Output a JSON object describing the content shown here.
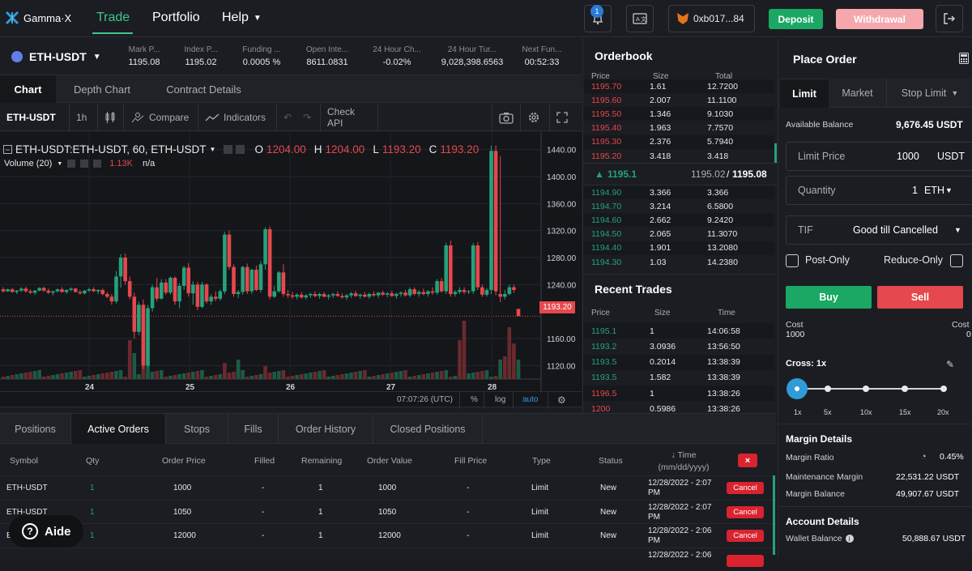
{
  "topnav": {
    "logo_text": "Gamma·X",
    "nav": [
      "Trade",
      "Portfolio",
      "Help"
    ],
    "notif_count": "1",
    "wallet_address": "0xb017...84",
    "deposit_label": "Deposit",
    "withdraw_label": "Withdrawal"
  },
  "ticker": {
    "pair": "ETH-USDT",
    "stats": [
      {
        "label": "Mark P...",
        "value": "1195.08"
      },
      {
        "label": "Index P...",
        "value": "1195.02"
      },
      {
        "label": "Funding ...",
        "value": "0.0005 %"
      },
      {
        "label": "Open Inte...",
        "value": "8611.0831"
      },
      {
        "label": "24 Hour Ch...",
        "value": "-0.02%"
      },
      {
        "label": "24 Hour Tur...",
        "value": "9,028,398.6563"
      },
      {
        "label": "Next Fun...",
        "value": "00:52:33"
      }
    ]
  },
  "chart_tabs": [
    "Chart",
    "Depth Chart",
    "Contract Details"
  ],
  "chart_toolbar": {
    "symbol": "ETH-USDT",
    "interval": "1h",
    "compare": "Compare",
    "indicators": "Indicators",
    "check_api": "Check API"
  },
  "chart_header": {
    "title": "ETH-USDT:ETH-USDT, 60, ETH-USDT",
    "o_label": "O",
    "o_val": "1204.00",
    "h_label": "H",
    "h_val": "1204.00",
    "l_label": "L",
    "l_val": "1193.20",
    "c_label": "C",
    "c_val": "1193.20",
    "volume_label": "Volume (20)",
    "volume_val": "1.13K",
    "volume_na": "n/a"
  },
  "chart_footer": {
    "time": "07:07:26 (UTC)",
    "pct": "%",
    "log": "log",
    "auto": "auto"
  },
  "chart_data": {
    "type": "candlestick",
    "price_ticks": [
      "1440.00",
      "1400.00",
      "1360.00",
      "1320.00",
      "1280.00",
      "1240.00",
      "1160.00",
      "1120.00"
    ],
    "last_price": "1193.20",
    "x_ticks": [
      "24",
      "25",
      "26",
      "27",
      "28"
    ],
    "ylim": [
      1100,
      1460
    ],
    "candles": [
      {
        "o": 1233,
        "h": 1236,
        "l": 1228,
        "c": 1230
      },
      {
        "o": 1230,
        "h": 1234,
        "l": 1229,
        "c": 1233
      },
      {
        "o": 1233,
        "h": 1235,
        "l": 1228,
        "c": 1229
      },
      {
        "o": 1229,
        "h": 1232,
        "l": 1226,
        "c": 1231
      },
      {
        "o": 1231,
        "h": 1236,
        "l": 1229,
        "c": 1234
      },
      {
        "o": 1234,
        "h": 1237,
        "l": 1228,
        "c": 1230
      },
      {
        "o": 1230,
        "h": 1233,
        "l": 1226,
        "c": 1228
      },
      {
        "o": 1228,
        "h": 1232,
        "l": 1225,
        "c": 1231
      },
      {
        "o": 1231,
        "h": 1236,
        "l": 1230,
        "c": 1235
      },
      {
        "o": 1235,
        "h": 1237,
        "l": 1229,
        "c": 1231
      },
      {
        "o": 1231,
        "h": 1234,
        "l": 1226,
        "c": 1228
      },
      {
        "o": 1228,
        "h": 1231,
        "l": 1224,
        "c": 1230
      },
      {
        "o": 1230,
        "h": 1234,
        "l": 1228,
        "c": 1233
      },
      {
        "o": 1233,
        "h": 1236,
        "l": 1228,
        "c": 1229
      },
      {
        "o": 1229,
        "h": 1233,
        "l": 1226,
        "c": 1232
      },
      {
        "o": 1232,
        "h": 1236,
        "l": 1230,
        "c": 1234
      },
      {
        "o": 1234,
        "h": 1235,
        "l": 1228,
        "c": 1229
      },
      {
        "o": 1229,
        "h": 1232,
        "l": 1225,
        "c": 1227
      },
      {
        "o": 1227,
        "h": 1232,
        "l": 1225,
        "c": 1231
      },
      {
        "o": 1231,
        "h": 1235,
        "l": 1229,
        "c": 1233
      },
      {
        "o": 1233,
        "h": 1236,
        "l": 1229,
        "c": 1230
      },
      {
        "o": 1230,
        "h": 1233,
        "l": 1226,
        "c": 1232
      },
      {
        "o": 1232,
        "h": 1234,
        "l": 1224,
        "c": 1226
      },
      {
        "o": 1226,
        "h": 1229,
        "l": 1220,
        "c": 1222
      },
      {
        "o": 1222,
        "h": 1226,
        "l": 1210,
        "c": 1215
      },
      {
        "o": 1215,
        "h": 1260,
        "l": 1212,
        "c": 1252
      },
      {
        "o": 1252,
        "h": 1285,
        "l": 1235,
        "c": 1280
      },
      {
        "o": 1280,
        "h": 1286,
        "l": 1240,
        "c": 1245
      },
      {
        "o": 1245,
        "h": 1252,
        "l": 1218,
        "c": 1222
      },
      {
        "o": 1222,
        "h": 1228,
        "l": 1160,
        "c": 1170
      },
      {
        "o": 1170,
        "h": 1215,
        "l": 1165,
        "c": 1210
      },
      {
        "o": 1210,
        "h": 1218,
        "l": 1115,
        "c": 1120
      },
      {
        "o": 1120,
        "h": 1210,
        "l": 1118,
        "c": 1205
      },
      {
        "o": 1205,
        "h": 1240,
        "l": 1200,
        "c": 1236
      },
      {
        "o": 1236,
        "h": 1250,
        "l": 1215,
        "c": 1219
      },
      {
        "o": 1219,
        "h": 1248,
        "l": 1218,
        "c": 1243
      },
      {
        "o": 1243,
        "h": 1248,
        "l": 1225,
        "c": 1228
      },
      {
        "o": 1228,
        "h": 1252,
        "l": 1225,
        "c": 1250
      },
      {
        "o": 1250,
        "h": 1252,
        "l": 1210,
        "c": 1215
      },
      {
        "o": 1215,
        "h": 1242,
        "l": 1205,
        "c": 1238
      },
      {
        "o": 1238,
        "h": 1268,
        "l": 1232,
        "c": 1265
      },
      {
        "o": 1265,
        "h": 1272,
        "l": 1222,
        "c": 1227
      },
      {
        "o": 1227,
        "h": 1245,
        "l": 1210,
        "c": 1240
      },
      {
        "o": 1240,
        "h": 1244,
        "l": 1202,
        "c": 1207
      },
      {
        "o": 1207,
        "h": 1244,
        "l": 1205,
        "c": 1240
      },
      {
        "o": 1240,
        "h": 1242,
        "l": 1212,
        "c": 1215
      },
      {
        "o": 1215,
        "h": 1226,
        "l": 1210,
        "c": 1222
      },
      {
        "o": 1222,
        "h": 1230,
        "l": 1215,
        "c": 1219
      },
      {
        "o": 1219,
        "h": 1233,
        "l": 1216,
        "c": 1230
      },
      {
        "o": 1230,
        "h": 1318,
        "l": 1226,
        "c": 1314
      },
      {
        "o": 1314,
        "h": 1320,
        "l": 1262,
        "c": 1266
      },
      {
        "o": 1266,
        "h": 1270,
        "l": 1222,
        "c": 1226
      },
      {
        "o": 1226,
        "h": 1232,
        "l": 1220,
        "c": 1229
      },
      {
        "o": 1229,
        "h": 1268,
        "l": 1225,
        "c": 1266
      },
      {
        "o": 1266,
        "h": 1271,
        "l": 1226,
        "c": 1230
      },
      {
        "o": 1230,
        "h": 1264,
        "l": 1226,
        "c": 1262
      },
      {
        "o": 1262,
        "h": 1268,
        "l": 1230,
        "c": 1232
      },
      {
        "o": 1232,
        "h": 1275,
        "l": 1228,
        "c": 1270
      },
      {
        "o": 1270,
        "h": 1325,
        "l": 1262,
        "c": 1322
      },
      {
        "o": 1322,
        "h": 1326,
        "l": 1218,
        "c": 1222
      },
      {
        "o": 1222,
        "h": 1238,
        "l": 1220,
        "c": 1230
      },
      {
        "o": 1230,
        "h": 1260,
        "l": 1228,
        "c": 1258
      },
      {
        "o": 1258,
        "h": 1270,
        "l": 1222,
        "c": 1226
      },
      {
        "o": 1226,
        "h": 1232,
        "l": 1220,
        "c": 1224
      },
      {
        "o": 1224,
        "h": 1229,
        "l": 1219,
        "c": 1222
      },
      {
        "o": 1222,
        "h": 1227,
        "l": 1218,
        "c": 1225
      },
      {
        "o": 1225,
        "h": 1229,
        "l": 1219,
        "c": 1221
      },
      {
        "o": 1221,
        "h": 1226,
        "l": 1218,
        "c": 1224
      },
      {
        "o": 1224,
        "h": 1228,
        "l": 1220,
        "c": 1226
      },
      {
        "o": 1226,
        "h": 1230,
        "l": 1221,
        "c": 1223
      },
      {
        "o": 1223,
        "h": 1228,
        "l": 1219,
        "c": 1226
      },
      {
        "o": 1226,
        "h": 1229,
        "l": 1221,
        "c": 1222
      },
      {
        "o": 1222,
        "h": 1226,
        "l": 1218,
        "c": 1224
      },
      {
        "o": 1224,
        "h": 1228,
        "l": 1220,
        "c": 1226
      },
      {
        "o": 1226,
        "h": 1230,
        "l": 1222,
        "c": 1223
      },
      {
        "o": 1223,
        "h": 1227,
        "l": 1219,
        "c": 1221
      },
      {
        "o": 1221,
        "h": 1226,
        "l": 1217,
        "c": 1224
      },
      {
        "o": 1224,
        "h": 1229,
        "l": 1220,
        "c": 1227
      },
      {
        "o": 1227,
        "h": 1231,
        "l": 1222,
        "c": 1223
      },
      {
        "o": 1223,
        "h": 1227,
        "l": 1219,
        "c": 1225
      },
      {
        "o": 1225,
        "h": 1229,
        "l": 1221,
        "c": 1222
      },
      {
        "o": 1222,
        "h": 1228,
        "l": 1219,
        "c": 1226
      },
      {
        "o": 1226,
        "h": 1230,
        "l": 1222,
        "c": 1224
      },
      {
        "o": 1224,
        "h": 1229,
        "l": 1220,
        "c": 1228
      },
      {
        "o": 1228,
        "h": 1231,
        "l": 1223,
        "c": 1225
      },
      {
        "o": 1225,
        "h": 1229,
        "l": 1221,
        "c": 1227
      },
      {
        "o": 1227,
        "h": 1231,
        "l": 1222,
        "c": 1223
      },
      {
        "o": 1223,
        "h": 1228,
        "l": 1219,
        "c": 1226
      },
      {
        "o": 1226,
        "h": 1230,
        "l": 1222,
        "c": 1228
      },
      {
        "o": 1228,
        "h": 1232,
        "l": 1222,
        "c": 1224
      },
      {
        "o": 1224,
        "h": 1236,
        "l": 1221,
        "c": 1233
      },
      {
        "o": 1233,
        "h": 1236,
        "l": 1224,
        "c": 1226
      },
      {
        "o": 1226,
        "h": 1232,
        "l": 1222,
        "c": 1229
      },
      {
        "o": 1229,
        "h": 1234,
        "l": 1224,
        "c": 1226
      },
      {
        "o": 1226,
        "h": 1232,
        "l": 1222,
        "c": 1230
      },
      {
        "o": 1230,
        "h": 1236,
        "l": 1225,
        "c": 1228
      },
      {
        "o": 1228,
        "h": 1248,
        "l": 1225,
        "c": 1245
      },
      {
        "o": 1245,
        "h": 1250,
        "l": 1228,
        "c": 1230
      },
      {
        "o": 1230,
        "h": 1302,
        "l": 1226,
        "c": 1298
      },
      {
        "o": 1298,
        "h": 1305,
        "l": 1222,
        "c": 1226
      },
      {
        "o": 1226,
        "h": 1232,
        "l": 1222,
        "c": 1229
      },
      {
        "o": 1229,
        "h": 1236,
        "l": 1226,
        "c": 1232
      },
      {
        "o": 1232,
        "h": 1236,
        "l": 1226,
        "c": 1229
      },
      {
        "o": 1229,
        "h": 1232,
        "l": 1226,
        "c": 1230
      },
      {
        "o": 1230,
        "h": 1302,
        "l": 1226,
        "c": 1298
      },
      {
        "o": 1298,
        "h": 1303,
        "l": 1232,
        "c": 1236
      },
      {
        "o": 1236,
        "h": 1240,
        "l": 1222,
        "c": 1225
      },
      {
        "o": 1225,
        "h": 1235,
        "l": 1222,
        "c": 1232
      },
      {
        "o": 1232,
        "h": 1446,
        "l": 1226,
        "c": 1438
      },
      {
        "o": 1438,
        "h": 1446,
        "l": 1224,
        "c": 1230
      },
      {
        "o": 1226,
        "h": 1430,
        "l": 1214,
        "c": 1222
      },
      {
        "o": 1222,
        "h": 1232,
        "l": 1218,
        "c": 1226
      },
      {
        "o": 1226,
        "h": 1240,
        "l": 1224,
        "c": 1236
      },
      {
        "o": 1236,
        "h": 1240,
        "l": 1228,
        "c": 1232
      },
      {
        "o": 1204,
        "h": 1204,
        "l": 1193.2,
        "c": 1193.2
      }
    ],
    "volume_spikes": [
      [
        28,
        "r",
        0.6
      ],
      [
        29,
        "g",
        0.4
      ],
      [
        31,
        "r",
        0.9
      ],
      [
        32,
        "g",
        0.8
      ],
      [
        49,
        "r",
        0.25
      ],
      [
        52,
        "g",
        0.3
      ],
      [
        58,
        "r",
        0.2
      ],
      [
        101,
        "r",
        0.6
      ],
      [
        102,
        "r",
        0.9
      ],
      [
        110,
        "g",
        0.3
      ],
      [
        111,
        "r",
        0.35
      ],
      [
        112,
        "r",
        0.8
      ],
      [
        113,
        "r",
        0.55
      ],
      [
        114,
        "g",
        0.3
      ]
    ]
  },
  "orderbook": {
    "title": "Orderbook",
    "headers": [
      "Price",
      "Size",
      "Total"
    ],
    "asks": [
      [
        "1195.70",
        "1.61",
        "12.7200"
      ],
      [
        "1195.60",
        "2.007",
        "11.1100"
      ],
      [
        "1195.50",
        "1.346",
        "9.1030"
      ],
      [
        "1195.40",
        "1.963",
        "7.7570"
      ],
      [
        "1195.30",
        "2.376",
        "5.7940"
      ],
      [
        "1195.20",
        "3.418",
        "3.418"
      ]
    ],
    "mid_price": "1195.1",
    "mid_index": "1195.02",
    "mid_sep": "/",
    "mid_mark": "1195.08",
    "bids": [
      [
        "1194.90",
        "3.366",
        "3.366"
      ],
      [
        "1194.70",
        "3.214",
        "6.5800"
      ],
      [
        "1194.60",
        "2.662",
        "9.2420"
      ],
      [
        "1194.50",
        "2.065",
        "11.3070"
      ],
      [
        "1194.40",
        "1.901",
        "13.2080"
      ],
      [
        "1194.30",
        "1.03",
        "14.2380"
      ]
    ]
  },
  "recent_trades": {
    "title": "Recent Trades",
    "headers": [
      "Price",
      "Size",
      "Time"
    ],
    "rows": [
      {
        "price": "1195.1",
        "size": "1",
        "time": "14:06:58",
        "side": "buy"
      },
      {
        "price": "1193.2",
        "size": "3.0936",
        "time": "13:56:50",
        "side": "buy"
      },
      {
        "price": "1193.5",
        "size": "0.2014",
        "time": "13:38:39",
        "side": "buy"
      },
      {
        "price": "1193.5",
        "size": "1.582",
        "time": "13:38:39",
        "side": "buy"
      },
      {
        "price": "1196.5",
        "size": "1",
        "time": "13:38:26",
        "side": "sell"
      },
      {
        "price": "1200",
        "size": "0.5986",
        "time": "13:38:26",
        "side": "sell"
      }
    ]
  },
  "place_order": {
    "title": "Place Order",
    "tabs": [
      "Limit",
      "Market",
      "Stop Limit"
    ],
    "available_label": "Available Balance",
    "available_value": "9,676.45 USDT",
    "limit_price_label": "Limit Price",
    "limit_price_value": "1000",
    "limit_price_unit": "USDT",
    "quantity_label": "Quantity",
    "quantity_value": "1",
    "quantity_unit": "ETH",
    "tif_label": "TIF",
    "tif_value": "Good till Cancelled",
    "post_only": "Post-Only",
    "reduce_only": "Reduce-Only",
    "buy_label": "Buy",
    "sell_label": "Sell",
    "cost_label": "Cost",
    "cost_buy": "1000",
    "cost_sell": "0",
    "cross_label": "Cross: 1x",
    "leverage_marks": [
      "1x",
      "5x",
      "10x",
      "15x",
      "20x"
    ],
    "leverage_selected": "1x",
    "margin_title": "Margin Details",
    "margin_ratio_label": "Margin Ratio",
    "margin_ratio_value": "0.45%",
    "maint_margin_label": "Maintenance Margin",
    "maint_margin_value": "22,531.22 USDT",
    "margin_balance_label": "Margin Balance",
    "margin_balance_value": "49,907.67 USDT",
    "account_title": "Account Details",
    "wallet_balance_label": "Wallet Balance",
    "wallet_balance_value": "50,888.67 USDT"
  },
  "bottom": {
    "tabs": [
      "Positions",
      "Active Orders",
      "Stops",
      "Fills",
      "Order History",
      "Closed Positions"
    ],
    "headers": [
      "Symbol",
      "Qty",
      "Order Price",
      "Filled",
      "Remaining",
      "Order Value",
      "Fill Price",
      "Type",
      "Status"
    ],
    "time_header_1": "↓ Time",
    "time_header_2": "(mm/dd/yyyy)",
    "cancel_all": "×",
    "rows": [
      {
        "symbol": "ETH-USDT",
        "qty": "1",
        "price": "1000",
        "filled": "-",
        "remaining": "1",
        "value": "1000",
        "fill": "-",
        "type": "Limit",
        "status": "New",
        "time1": "12/28/2022 - 2:07",
        "time2": "PM",
        "cancel": "Cancel"
      },
      {
        "symbol": "ETH-USDT",
        "qty": "1",
        "price": "1050",
        "filled": "-",
        "remaining": "1",
        "value": "1050",
        "fill": "-",
        "type": "Limit",
        "status": "New",
        "time1": "12/28/2022 - 2:07",
        "time2": "PM",
        "cancel": "Cancel"
      },
      {
        "symbol": "ETH-USDT",
        "qty": "1",
        "price": "12000",
        "filled": "-",
        "remaining": "1",
        "value": "12000",
        "fill": "-",
        "type": "Limit",
        "status": "New",
        "time1": "12/28/2022 - 2:06",
        "time2": "PM",
        "cancel": "Cancel"
      },
      {
        "symbol": "",
        "qty": "",
        "price": "",
        "filled": "",
        "remaining": "",
        "value": "",
        "fill": "",
        "type": "",
        "status": "",
        "time1": "12/28/2022 - 2:06",
        "time2": "",
        "cancel": ""
      }
    ]
  },
  "aide": {
    "label": "Aide"
  },
  "colors": {
    "green": "#26a17b",
    "red": "#e5484d",
    "accent": "#1aa864"
  }
}
